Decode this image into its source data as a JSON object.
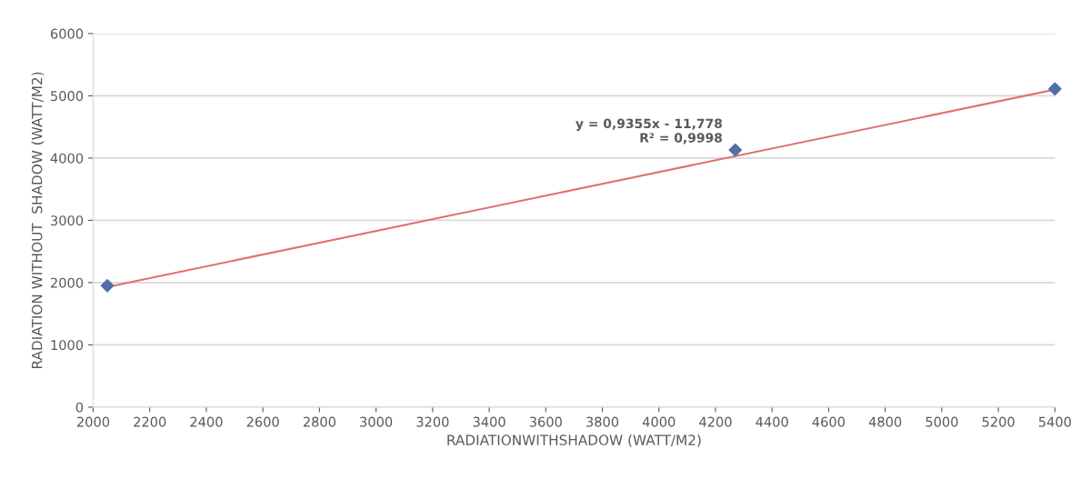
{
  "chart_data": {
    "type": "scatter",
    "xlabel": "RADIATIONWITHSHADOW (WATT/M2)",
    "ylabel": "RADIATION WITHOUT  SHADOW (WATT/M2)",
    "xlim": [
      2000,
      5400
    ],
    "xticks": [
      2000,
      2200,
      2400,
      2600,
      2800,
      3000,
      3200,
      3400,
      3600,
      3800,
      4000,
      4200,
      4400,
      4600,
      4800,
      5000,
      5200,
      5400
    ],
    "ylim": [
      0,
      6000
    ],
    "yticks": [
      0,
      1000,
      2000,
      3000,
      4000,
      5000,
      6000
    ],
    "grid": "y",
    "marker": "diamond",
    "series": [
      {
        "color": "#4f6fa8",
        "x": [
          2050,
          4270,
          5400
        ],
        "values": [
          1950,
          4130,
          5110
        ]
      },
      {
        "type": "line",
        "color": "#e07070",
        "x": [
          2050,
          5400
        ],
        "values": [
          1930,
          5100
        ],
        "marker": "none",
        "line_style": "solid"
      }
    ],
    "annotations": [
      {
        "text": "y = 0,9355x - 11,778\nR² = 0,9998",
        "x": 4270,
        "y": 4130
      }
    ]
  }
}
